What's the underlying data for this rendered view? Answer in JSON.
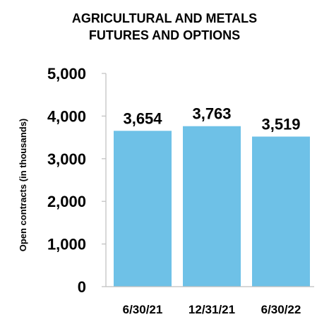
{
  "chart_data": {
    "type": "bar",
    "title_lines": [
      "AGRICULTURAL AND METALS",
      "FUTURES AND OPTIONS"
    ],
    "ylabel": "Open contracts (in thousands)",
    "xlabel": "",
    "categories": [
      "6/30/21",
      "12/31/21",
      "6/30/22"
    ],
    "values": [
      3654,
      3763,
      3519
    ],
    "data_labels": [
      "3,654",
      "3,763",
      "3,519"
    ],
    "yticks": [
      0,
      1000,
      2000,
      3000,
      4000,
      5000
    ],
    "ytick_labels": [
      "0",
      "1,000",
      "2,000",
      "3,000",
      "4,000",
      "5,000"
    ],
    "ylim": [
      0,
      5000
    ],
    "grid": false,
    "legend": "none",
    "bar_color": "#6EC1E7",
    "axis_color": "#BFBFBF"
  }
}
